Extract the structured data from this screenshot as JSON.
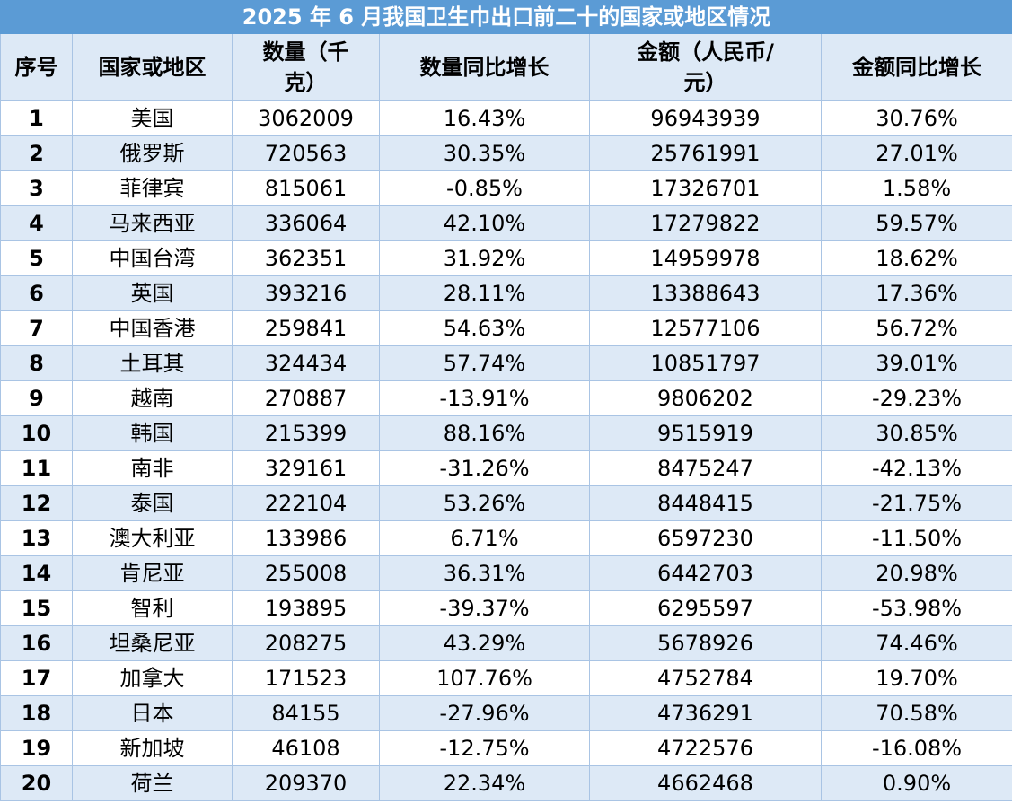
{
  "title": "2025 年 6 月我国卫生巾出口前二十的国家或地区情况",
  "headers": {
    "seq": "序号",
    "country": "国家或地区",
    "qty": "数量（千克）",
    "qty_yoy": "数量同比增长",
    "amount": "金额（人民币/元）",
    "amount_yoy": "金额同比增长"
  },
  "rows": [
    {
      "seq": "1",
      "country": "美国",
      "qty": "3062009",
      "qty_yoy": "16.43%",
      "amount": "96943939",
      "amount_yoy": "30.76%"
    },
    {
      "seq": "2",
      "country": "俄罗斯",
      "qty": "720563",
      "qty_yoy": "30.35%",
      "amount": "25761991",
      "amount_yoy": "27.01%"
    },
    {
      "seq": "3",
      "country": "菲律宾",
      "qty": "815061",
      "qty_yoy": "-0.85%",
      "amount": "17326701",
      "amount_yoy": "1.58%"
    },
    {
      "seq": "4",
      "country": "马来西亚",
      "qty": "336064",
      "qty_yoy": "42.10%",
      "amount": "17279822",
      "amount_yoy": "59.57%"
    },
    {
      "seq": "5",
      "country": "中国台湾",
      "qty": "362351",
      "qty_yoy": "31.92%",
      "amount": "14959978",
      "amount_yoy": "18.62%"
    },
    {
      "seq": "6",
      "country": "英国",
      "qty": "393216",
      "qty_yoy": "28.11%",
      "amount": "13388643",
      "amount_yoy": "17.36%"
    },
    {
      "seq": "7",
      "country": "中国香港",
      "qty": "259841",
      "qty_yoy": "54.63%",
      "amount": "12577106",
      "amount_yoy": "56.72%"
    },
    {
      "seq": "8",
      "country": "土耳其",
      "qty": "324434",
      "qty_yoy": "57.74%",
      "amount": "10851797",
      "amount_yoy": "39.01%"
    },
    {
      "seq": "9",
      "country": "越南",
      "qty": "270887",
      "qty_yoy": "-13.91%",
      "amount": "9806202",
      "amount_yoy": "-29.23%"
    },
    {
      "seq": "10",
      "country": "韩国",
      "qty": "215399",
      "qty_yoy": "88.16%",
      "amount": "9515919",
      "amount_yoy": "30.85%"
    },
    {
      "seq": "11",
      "country": "南非",
      "qty": "329161",
      "qty_yoy": "-31.26%",
      "amount": "8475247",
      "amount_yoy": "-42.13%"
    },
    {
      "seq": "12",
      "country": "泰国",
      "qty": "222104",
      "qty_yoy": "53.26%",
      "amount": "8448415",
      "amount_yoy": "-21.75%"
    },
    {
      "seq": "13",
      "country": "澳大利亚",
      "qty": "133986",
      "qty_yoy": "6.71%",
      "amount": "6597230",
      "amount_yoy": "-11.50%"
    },
    {
      "seq": "14",
      "country": "肯尼亚",
      "qty": "255008",
      "qty_yoy": "36.31%",
      "amount": "6442703",
      "amount_yoy": "20.98%"
    },
    {
      "seq": "15",
      "country": "智利",
      "qty": "193895",
      "qty_yoy": "-39.37%",
      "amount": "6295597",
      "amount_yoy": "-53.98%"
    },
    {
      "seq": "16",
      "country": "坦桑尼亚",
      "qty": "208275",
      "qty_yoy": "43.29%",
      "amount": "5678926",
      "amount_yoy": "74.46%"
    },
    {
      "seq": "17",
      "country": "加拿大",
      "qty": "171523",
      "qty_yoy": "107.76%",
      "amount": "4752784",
      "amount_yoy": "19.70%"
    },
    {
      "seq": "18",
      "country": "日本",
      "qty": "84155",
      "qty_yoy": "-27.96%",
      "amount": "4736291",
      "amount_yoy": "70.58%"
    },
    {
      "seq": "19",
      "country": "新加坡",
      "qty": "46108",
      "qty_yoy": "-12.75%",
      "amount": "4722576",
      "amount_yoy": "-16.08%"
    },
    {
      "seq": "20",
      "country": "荷兰",
      "qty": "209370",
      "qty_yoy": "22.34%",
      "amount": "4662468",
      "amount_yoy": "0.90%"
    }
  ]
}
